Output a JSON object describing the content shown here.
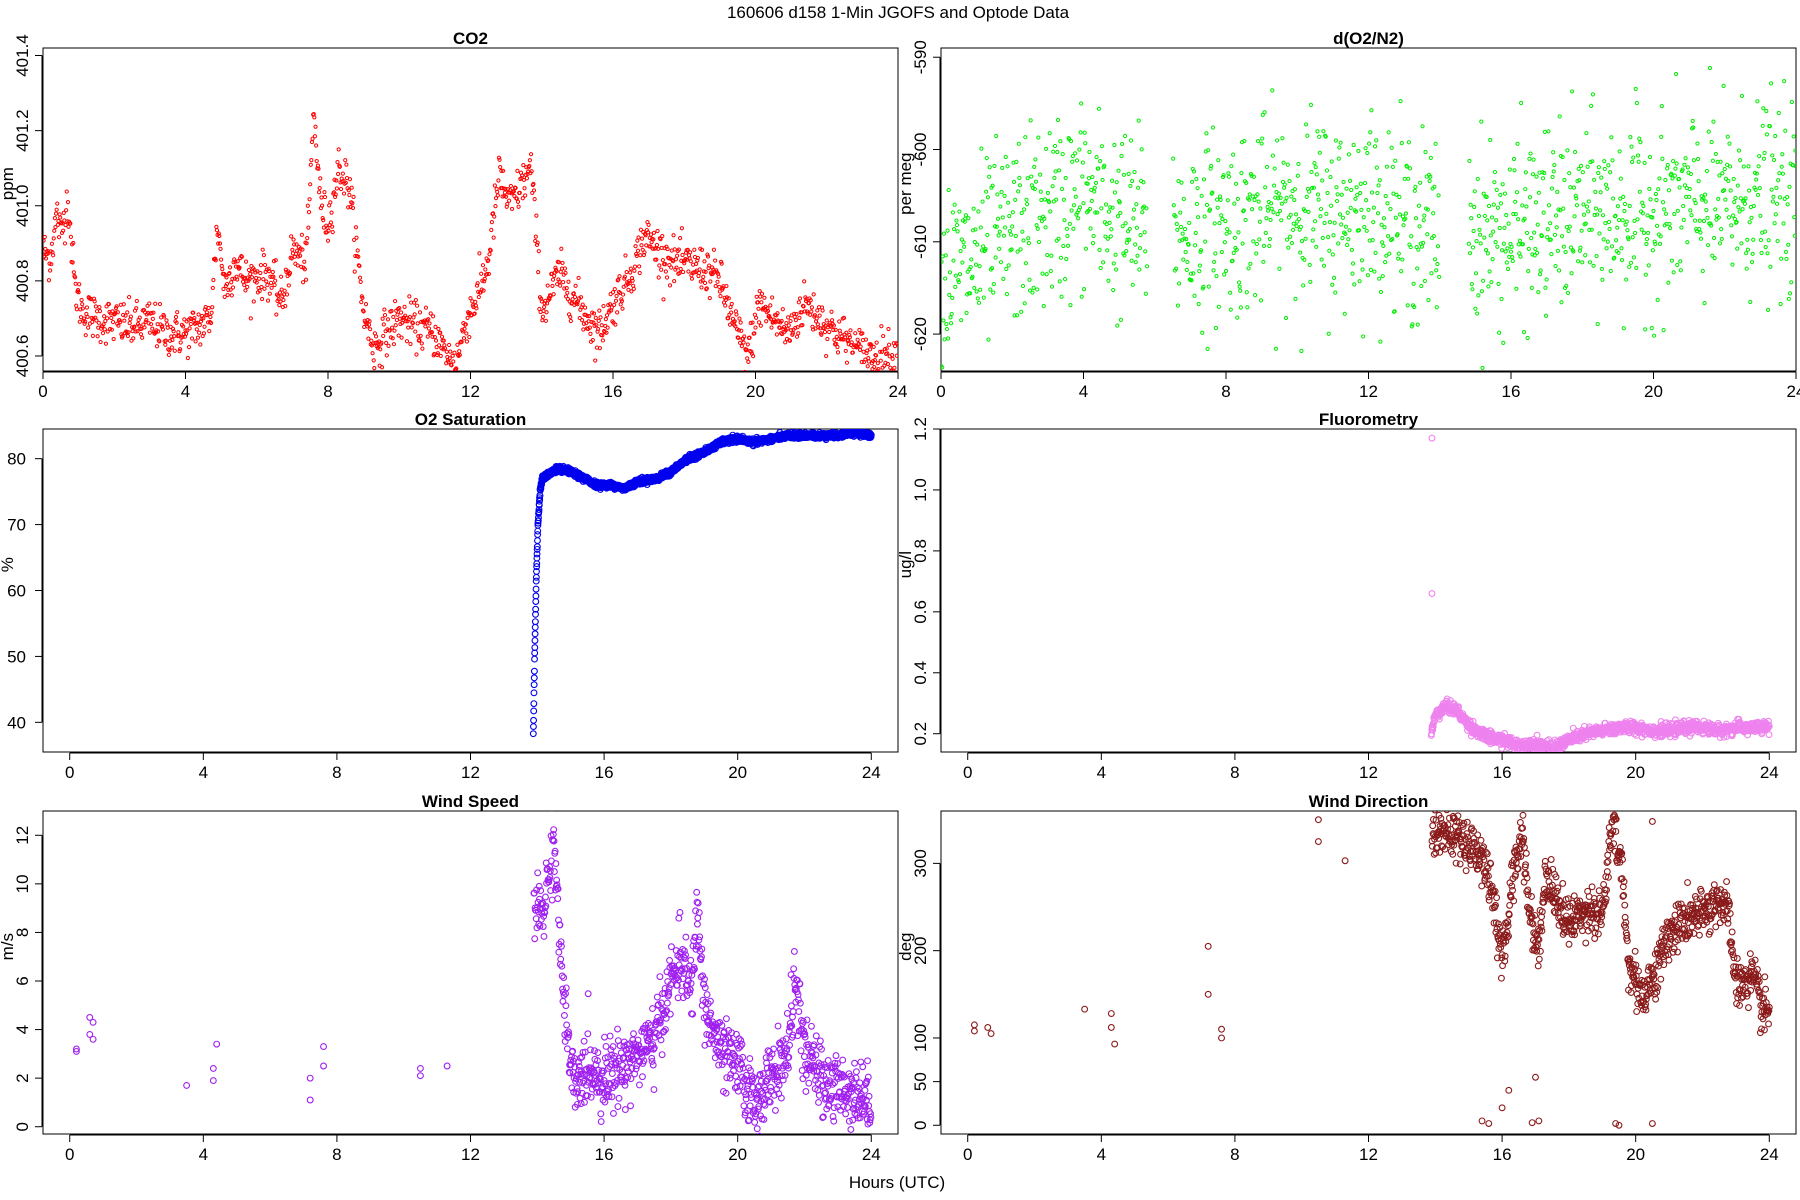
{
  "page_title": "160606   d158   1-Min  JGOFS and Optode Data",
  "x_axis_label": "Hours (UTC)",
  "chart_data": [
    {
      "type": "scatter",
      "title": "CO2",
      "ylabel": "ppm",
      "xlim": [
        0,
        24
      ],
      "ylim": [
        400.56,
        401.42
      ],
      "xticks": [
        0,
        4,
        8,
        12,
        16,
        20,
        24
      ],
      "yticks": [
        400.6,
        400.8,
        401.0,
        401.2,
        401.4
      ],
      "ytick_labels": [
        "400.6",
        "400.8",
        "401.0",
        "401.2",
        "401.4"
      ],
      "y_tick_rotated": true,
      "color": "#ff0000",
      "marker_size": "small",
      "trace": [
        [
          0,
          400.88
        ],
        [
          0.2,
          400.86
        ],
        [
          0.4,
          400.98
        ],
        [
          0.5,
          400.92
        ],
        [
          0.7,
          401.02
        ],
        [
          0.9,
          400.78
        ],
        [
          1.1,
          400.72
        ],
        [
          1.5,
          400.7
        ],
        [
          2.0,
          400.69
        ],
        [
          2.5,
          400.68
        ],
        [
          3.0,
          400.69
        ],
        [
          3.5,
          400.66
        ],
        [
          4.0,
          400.66
        ],
        [
          4.4,
          400.68
        ],
        [
          4.7,
          400.7
        ],
        [
          4.9,
          400.95
        ],
        [
          5.1,
          400.78
        ],
        [
          5.4,
          400.85
        ],
        [
          5.7,
          400.8
        ],
        [
          6.3,
          400.82
        ],
        [
          6.7,
          400.74
        ],
        [
          7.0,
          400.88
        ],
        [
          7.4,
          400.85
        ],
        [
          7.6,
          401.25
        ],
        [
          7.8,
          401.0
        ],
        [
          8.0,
          400.95
        ],
        [
          8.3,
          401.1
        ],
        [
          8.6,
          401.05
        ],
        [
          9.0,
          400.72
        ],
        [
          9.3,
          400.62
        ],
        [
          9.6,
          400.66
        ],
        [
          10.0,
          400.7
        ],
        [
          10.5,
          400.68
        ],
        [
          11.0,
          400.66
        ],
        [
          11.3,
          400.6
        ],
        [
          11.6,
          400.58
        ],
        [
          11.9,
          400.7
        ],
        [
          12.2,
          400.76
        ],
        [
          12.5,
          400.85
        ],
        [
          12.8,
          401.08
        ],
        [
          13.1,
          401.0
        ],
        [
          13.4,
          401.05
        ],
        [
          13.7,
          401.1
        ],
        [
          14.0,
          400.72
        ],
        [
          14.5,
          400.82
        ],
        [
          15.0,
          400.74
        ],
        [
          15.3,
          400.7
        ],
        [
          15.6,
          400.66
        ],
        [
          16.0,
          400.74
        ],
        [
          16.5,
          400.82
        ],
        [
          16.9,
          400.92
        ],
        [
          17.3,
          400.88
        ],
        [
          17.7,
          400.85
        ],
        [
          18.2,
          400.84
        ],
        [
          18.6,
          400.83
        ],
        [
          19.0,
          400.8
        ],
        [
          19.4,
          400.68
        ],
        [
          19.8,
          400.6
        ],
        [
          20.1,
          400.74
        ],
        [
          20.5,
          400.7
        ],
        [
          20.9,
          400.66
        ],
        [
          21.4,
          400.74
        ],
        [
          21.8,
          400.7
        ],
        [
          22.3,
          400.66
        ],
        [
          22.8,
          400.62
        ],
        [
          23.3,
          400.6
        ],
        [
          23.6,
          400.61
        ],
        [
          24.0,
          400.6
        ]
      ],
      "noise": 0.03,
      "density": 2,
      "missing_ranges": []
    },
    {
      "type": "scatter",
      "title": "d(O2/N2)",
      "ylabel": "per meg",
      "xlim": [
        0,
        24
      ],
      "ylim": [
        -624,
        -589
      ],
      "xticks": [
        0,
        4,
        8,
        12,
        16,
        20,
        24
      ],
      "yticks": [
        -620,
        -610,
        -600,
        -590
      ],
      "ytick_labels": [
        "-620",
        "-610",
        "-600",
        "-590"
      ],
      "y_tick_rotated": true,
      "color": "#00ee00",
      "marker_size": "small",
      "trace": [
        [
          0,
          -614
        ],
        [
          1,
          -612
        ],
        [
          2,
          -609
        ],
        [
          3,
          -607
        ],
        [
          4,
          -605
        ],
        [
          5,
          -608
        ],
        [
          7,
          -609
        ],
        [
          8,
          -608
        ],
        [
          10,
          -606
        ],
        [
          11,
          -607
        ],
        [
          12,
          -606
        ],
        [
          13,
          -608
        ],
        [
          14,
          -609
        ],
        [
          16,
          -609
        ],
        [
          17,
          -608
        ],
        [
          18,
          -607
        ],
        [
          19,
          -607
        ],
        [
          20,
          -607
        ],
        [
          21,
          -606
        ],
        [
          22,
          -606
        ],
        [
          23,
          -605
        ],
        [
          24,
          -606
        ]
      ],
      "noise": 5,
      "density": 2,
      "missing_ranges": [
        [
          5.8,
          6.5
        ],
        [
          14.0,
          14.8
        ]
      ]
    },
    {
      "type": "scatter",
      "title": "O2 Saturation",
      "ylabel": "%",
      "xlim": [
        -0.8,
        24.8
      ],
      "ylim": [
        35.5,
        84.5
      ],
      "xticks": [
        0,
        4,
        8,
        12,
        16,
        20,
        24
      ],
      "yticks": [
        40,
        50,
        60,
        70,
        80
      ],
      "ytick_labels": [
        "40",
        "50",
        "60",
        "70",
        "80"
      ],
      "y_tick_rotated": false,
      "color": "#0000ee",
      "marker_size": "large",
      "trace": [
        [
          13.88,
          38
        ],
        [
          13.92,
          50
        ],
        [
          13.97,
          62
        ],
        [
          14.02,
          70
        ],
        [
          14.08,
          75
        ],
        [
          14.15,
          77
        ],
        [
          14.3,
          77.5
        ],
        [
          14.6,
          78.5
        ],
        [
          15.0,
          78
        ],
        [
          15.4,
          77
        ],
        [
          15.8,
          76
        ],
        [
          16.2,
          76
        ],
        [
          16.6,
          75.5
        ],
        [
          17.0,
          76.5
        ],
        [
          17.6,
          77
        ],
        [
          18.0,
          78
        ],
        [
          18.5,
          80
        ],
        [
          19.0,
          81
        ],
        [
          19.5,
          82.5
        ],
        [
          20.0,
          83
        ],
        [
          20.5,
          82.5
        ],
        [
          21.0,
          83
        ],
        [
          21.5,
          83.5
        ],
        [
          22.0,
          83.5
        ],
        [
          22.5,
          83.5
        ],
        [
          23.0,
          83.5
        ],
        [
          23.5,
          84
        ],
        [
          24.0,
          83.5
        ]
      ],
      "noise": 0.2,
      "density": 8,
      "missing_ranges": []
    },
    {
      "type": "scatter",
      "title": "Fluorometry",
      "ylabel": "ug/l",
      "xlim": [
        -0.8,
        24.8
      ],
      "ylim": [
        0.14,
        1.2
      ],
      "xticks": [
        0,
        4,
        8,
        12,
        16,
        20,
        24
      ],
      "yticks": [
        0.2,
        0.4,
        0.6,
        0.8,
        1.0,
        1.2
      ],
      "ytick_labels": [
        "0.2",
        "0.4",
        "0.6",
        "0.8",
        "1.0",
        "1.2"
      ],
      "y_tick_rotated": true,
      "color": "#ee82ee",
      "marker_size": "large",
      "trace": [
        [
          13.88,
          0.2
        ],
        [
          14.0,
          0.26
        ],
        [
          14.3,
          0.29
        ],
        [
          14.6,
          0.28
        ],
        [
          15.0,
          0.23
        ],
        [
          15.5,
          0.19
        ],
        [
          16.0,
          0.18
        ],
        [
          16.5,
          0.16
        ],
        [
          17.0,
          0.17
        ],
        [
          17.5,
          0.15
        ],
        [
          18.0,
          0.18
        ],
        [
          18.5,
          0.2
        ],
        [
          19.0,
          0.21
        ],
        [
          19.5,
          0.22
        ],
        [
          20.0,
          0.22
        ],
        [
          20.5,
          0.21
        ],
        [
          21.0,
          0.21
        ],
        [
          21.5,
          0.22
        ],
        [
          22.0,
          0.22
        ],
        [
          22.5,
          0.21
        ],
        [
          23.0,
          0.22
        ],
        [
          23.5,
          0.22
        ],
        [
          24.0,
          0.22
        ]
      ],
      "noise": 0.01,
      "density": 4,
      "extra_points": [
        [
          13.9,
          1.17
        ],
        [
          13.9,
          0.66
        ]
      ],
      "missing_ranges": []
    },
    {
      "type": "scatter",
      "title": "Wind Speed",
      "ylabel": "m/s",
      "xlim": [
        -0.8,
        24.8
      ],
      "ylim": [
        -0.3,
        13
      ],
      "xticks": [
        0,
        4,
        8,
        12,
        16,
        20,
        24
      ],
      "yticks": [
        0,
        2,
        4,
        6,
        8,
        10,
        12
      ],
      "ytick_labels": [
        "0",
        "2",
        "4",
        "6",
        "8",
        "10",
        "12"
      ],
      "y_tick_rotated": true,
      "color": "#a020f0",
      "marker_size": "large",
      "extra_points": [
        [
          0.2,
          3.2
        ],
        [
          0.2,
          3.1
        ],
        [
          0.6,
          4.5
        ],
        [
          0.7,
          4.3
        ],
        [
          0.6,
          3.8
        ],
        [
          0.7,
          3.6
        ],
        [
          3.5,
          1.7
        ],
        [
          4.4,
          3.4
        ],
        [
          4.3,
          2.4
        ],
        [
          4.3,
          1.9
        ],
        [
          7.2,
          2.0
        ],
        [
          7.2,
          1.1
        ],
        [
          7.6,
          3.3
        ],
        [
          7.6,
          2.5
        ],
        [
          10.5,
          2.4
        ],
        [
          10.5,
          2.1
        ],
        [
          11.3,
          2.5
        ]
      ],
      "trace": [
        [
          13.9,
          8.8
        ],
        [
          14.2,
          9.0
        ],
        [
          14.5,
          12.0
        ],
        [
          14.7,
          7.0
        ],
        [
          14.9,
          3.5
        ],
        [
          15.1,
          1.5
        ],
        [
          15.5,
          2.5
        ],
        [
          16.0,
          2.0
        ],
        [
          16.5,
          2.5
        ],
        [
          17.0,
          3.0
        ],
        [
          17.5,
          3.5
        ],
        [
          18.0,
          6.0
        ],
        [
          18.3,
          7.0
        ],
        [
          18.6,
          5.5
        ],
        [
          18.8,
          8.8
        ],
        [
          19.0,
          5.0
        ],
        [
          19.5,
          3.0
        ],
        [
          20.0,
          2.5
        ],
        [
          20.5,
          1.0
        ],
        [
          21.0,
          2.0
        ],
        [
          21.5,
          3.0
        ],
        [
          21.7,
          6.0
        ],
        [
          22.0,
          3.0
        ],
        [
          22.5,
          2.0
        ],
        [
          23.0,
          1.5
        ],
        [
          23.5,
          1.5
        ],
        [
          24.0,
          1.0
        ]
      ],
      "noise": 0.7,
      "density": 3,
      "missing_ranges": []
    },
    {
      "type": "scatter",
      "title": "Wind Direction",
      "ylabel": "deg",
      "xlim": [
        -0.8,
        24.8
      ],
      "ylim": [
        -10,
        360
      ],
      "xticks": [
        0,
        4,
        8,
        12,
        16,
        20,
        24
      ],
      "yticks": [
        0,
        50,
        100,
        200,
        300
      ],
      "ytick_labels": [
        "0",
        "50",
        "100",
        "200",
        "300"
      ],
      "y_tick_rotated": true,
      "color": "#8b1a1a",
      "marker_size": "large",
      "extra_points": [
        [
          0.2,
          115
        ],
        [
          0.2,
          108
        ],
        [
          0.6,
          112
        ],
        [
          0.7,
          105
        ],
        [
          3.5,
          133
        ],
        [
          4.3,
          128
        ],
        [
          4.3,
          112
        ],
        [
          4.4,
          93
        ],
        [
          7.2,
          205
        ],
        [
          7.2,
          150
        ],
        [
          7.6,
          110
        ],
        [
          7.6,
          100
        ],
        [
          10.5,
          350
        ],
        [
          10.5,
          325
        ],
        [
          11.3,
          303
        ],
        [
          15.4,
          5
        ],
        [
          15.6,
          2
        ],
        [
          16.0,
          20
        ],
        [
          16.2,
          40
        ],
        [
          16.9,
          3
        ],
        [
          17.1,
          5
        ],
        [
          17.0,
          55
        ],
        [
          19.4,
          2
        ],
        [
          19.5,
          0
        ],
        [
          20.5,
          2
        ],
        [
          20.5,
          348
        ]
      ],
      "trace": [
        [
          13.9,
          335
        ],
        [
          14.3,
          335
        ],
        [
          14.7,
          330
        ],
        [
          15.1,
          320
        ],
        [
          15.5,
          300
        ],
        [
          15.8,
          250
        ],
        [
          16.0,
          180
        ],
        [
          16.3,
          280
        ],
        [
          16.6,
          340
        ],
        [
          16.8,
          250
        ],
        [
          17.1,
          200
        ],
        [
          17.3,
          290
        ],
        [
          17.6,
          260
        ],
        [
          18.0,
          230
        ],
        [
          18.5,
          250
        ],
        [
          19.0,
          240
        ],
        [
          19.3,
          345
        ],
        [
          19.6,
          290
        ],
        [
          19.8,
          180
        ],
        [
          20.2,
          150
        ],
        [
          20.6,
          175
        ],
        [
          21.0,
          220
        ],
        [
          21.5,
          235
        ],
        [
          22.0,
          240
        ],
        [
          22.5,
          260
        ],
        [
          22.8,
          240
        ],
        [
          23.0,
          160
        ],
        [
          23.5,
          170
        ],
        [
          23.8,
          130
        ],
        [
          24.0,
          130
        ]
      ],
      "noise": 14,
      "density": 3,
      "missing_ranges": []
    }
  ]
}
